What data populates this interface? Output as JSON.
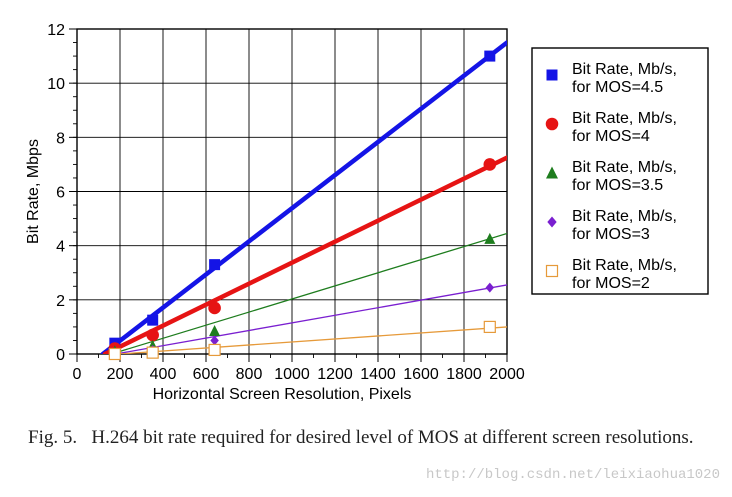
{
  "chart_data": {
    "type": "scatter",
    "title": "",
    "xlabel": "Horizontal Screen Resolution, Pixels",
    "ylabel": "Bit Rate, Mbps",
    "xlim": [
      0,
      2000
    ],
    "ylim": [
      0,
      12
    ],
    "xticks": [
      0,
      200,
      400,
      600,
      800,
      1000,
      1200,
      1400,
      1600,
      1800,
      2000
    ],
    "yticks": [
      0,
      2,
      4,
      6,
      8,
      10,
      12
    ],
    "grid": true,
    "legend_position": "right",
    "series": [
      {
        "name": "Bit Rate, Mb/s, for MOS=4.5",
        "label_lines": [
          "Bit Rate, Mb/s,",
          "for MOS=4.5"
        ],
        "marker": "square",
        "color": "#1414e6",
        "x": [
          176,
          352,
          640,
          1920
        ],
        "y": [
          0.4,
          1.25,
          3.3,
          11.0
        ],
        "fit": {
          "x": [
            120,
            2000
          ],
          "y": [
            0.0,
            11.5
          ]
        },
        "fit_width": 4.5
      },
      {
        "name": "Bit Rate, Mb/s, for MOS=4",
        "label_lines": [
          "Bit Rate, Mb/s,",
          "for MOS=4"
        ],
        "marker": "circle",
        "color": "#e61414",
        "x": [
          176,
          352,
          640,
          1920
        ],
        "y": [
          0.2,
          0.7,
          1.7,
          7.0
        ],
        "fit": {
          "x": [
            130,
            2000
          ],
          "y": [
            0.0,
            7.25
          ]
        },
        "fit_width": 4.5
      },
      {
        "name": "Bit Rate, Mb/s, for MOS=3.5",
        "label_lines": [
          "Bit Rate, Mb/s,",
          "for MOS=3.5"
        ],
        "marker": "triangle",
        "color": "#1e7d1e",
        "x": [
          176,
          352,
          640,
          1920
        ],
        "y": [
          0.1,
          0.3,
          0.85,
          4.25
        ],
        "fit": {
          "x": [
            160,
            2000
          ],
          "y": [
            0.0,
            4.45
          ]
        },
        "fit_width": 1.3
      },
      {
        "name": "Bit Rate, Mb/s, for MOS=3",
        "label_lines": [
          "Bit Rate, Mb/s,",
          "for MOS=3"
        ],
        "marker": "diamond",
        "color": "#7a1fd0",
        "x": [
          176,
          352,
          640,
          1920
        ],
        "y": [
          0.05,
          0.15,
          0.5,
          2.45
        ],
        "fit": {
          "x": [
            180,
            2000
          ],
          "y": [
            0.0,
            2.55
          ]
        },
        "fit_width": 1.3
      },
      {
        "name": "Bit Rate, Mb/s, for MOS=2",
        "label_lines": [
          "Bit Rate, Mb/s,",
          "for MOS=2"
        ],
        "marker": "open-square",
        "color": "#e69a3a",
        "x": [
          176,
          352,
          640,
          1920
        ],
        "y": [
          0.0,
          0.05,
          0.15,
          1.0
        ],
        "fit": {
          "x": [
            200,
            2000
          ],
          "y": [
            0.0,
            1.0
          ]
        },
        "fit_width": 1.3
      }
    ]
  },
  "caption": "Fig. 5.  H.264 bit rate required for desired level of MOS at different screen resolutions.",
  "watermark": "http://blog.csdn.net/leixiaohua1020"
}
